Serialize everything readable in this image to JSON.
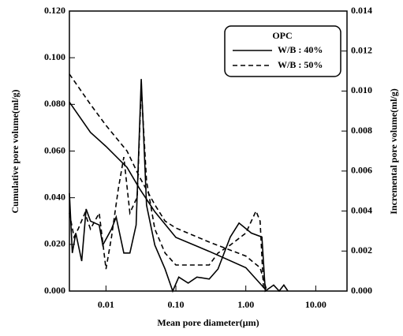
{
  "chart_data": {
    "type": "line",
    "xlabel": "Mean pore diameter(μm)",
    "ylabel": "Cumulative pore volume(ml/g)",
    "y2label": "Incremental pore volume(ml/g)",
    "legend_title": "OPC",
    "legend": "upper right",
    "xscale": "log",
    "xlim": [
      0.003,
      28
    ],
    "xticks": [
      0.01,
      {
        "value": 0.1,
        "label": "0.10"
      },
      {
        "value": 1,
        "label": "1.00"
      },
      {
        "value": 10,
        "label": "10.00"
      }
    ],
    "ylim": [
      0,
      0.12
    ],
    "yticks": [
      {
        "value": 0,
        "label": "0.000"
      },
      {
        "value": 0.02,
        "label": "0.020"
      },
      {
        "value": 0.04,
        "label": "0.040"
      },
      {
        "value": 0.06,
        "label": "0.060"
      },
      {
        "value": 0.08,
        "label": "0.080"
      },
      {
        "value": 0.1,
        "label": "0.100"
      },
      {
        "value": 0.12,
        "label": "0.120"
      }
    ],
    "y2lim": [
      0,
      0.014
    ],
    "y2ticks": [
      {
        "value": 0,
        "label": "0.000"
      },
      {
        "value": 0.002,
        "label": "0.002"
      },
      {
        "value": 0.004,
        "label": "0.004"
      },
      {
        "value": 0.006,
        "label": "0.006"
      },
      {
        "value": 0.008,
        "label": "0.008"
      },
      {
        "value": 0.01,
        "label": "0.010"
      },
      {
        "value": 0.012,
        "label": "0.012"
      },
      {
        "value": 0.014,
        "label": "0.014"
      }
    ],
    "series": [
      {
        "name": "W/B : 40%",
        "color": "#000000",
        "dash": false,
        "x": [
          0.003,
          0.006,
          0.01,
          0.02,
          0.03,
          0.05,
          0.1,
          0.3,
          1,
          2
        ],
        "values": [
          0.081,
          0.068,
          0.062,
          0.053,
          0.044,
          0.034,
          0.023,
          0.017,
          0.01,
          0
        ],
        "x2": [
          0.003,
          0.0033,
          0.0037,
          0.0045,
          0.0052,
          0.006,
          0.008,
          0.009,
          0.012,
          0.014,
          0.018,
          0.022,
          0.027,
          0.032,
          0.038,
          0.05,
          0.07,
          0.09,
          0.11,
          0.15,
          0.2,
          0.3,
          0.4,
          0.6,
          0.8,
          1.2,
          1.7,
          1.9,
          2.5,
          3,
          3.5,
          4
        ],
        "values2": [
          0.0049,
          0.0019,
          0.0029,
          0.0015,
          0.0041,
          0.0035,
          0.0033,
          0.0023,
          0.0031,
          0.0037,
          0.0019,
          0.0019,
          0.0033,
          0.0106,
          0.0043,
          0.0023,
          0.0011,
          0,
          0.0007,
          0.0004,
          0.0007,
          0.0006,
          0.0011,
          0.0027,
          0.0034,
          0.0029,
          0.0027,
          0,
          0.0003,
          0,
          0.0003,
          0
        ]
      },
      {
        "name": "W/B : 50%",
        "color": "#000000",
        "dash": true,
        "x": [
          0.003,
          0.006,
          0.01,
          0.02,
          0.03,
          0.05,
          0.07,
          0.1,
          0.3,
          1,
          1.6,
          2
        ],
        "values": [
          0.093,
          0.08,
          0.071,
          0.06,
          0.049,
          0.037,
          0.03,
          0.027,
          0.021,
          0.015,
          0.01,
          0
        ],
        "x2": [
          0.003,
          0.0035,
          0.004,
          0.005,
          0.006,
          0.008,
          0.01,
          0.012,
          0.015,
          0.018,
          0.022,
          0.028,
          0.032,
          0.038,
          0.05,
          0.07,
          0.1,
          0.2,
          0.3,
          0.4,
          0.6,
          1,
          1.4,
          1.6,
          1.8
        ],
        "values2": [
          0.0039,
          0.0027,
          0.0031,
          0.0039,
          0.0031,
          0.0039,
          0.0011,
          0.0027,
          0.0051,
          0.0067,
          0.0039,
          0.0047,
          0.0102,
          0.0055,
          0.0031,
          0.0019,
          0.0013,
          0.0013,
          0.0013,
          0.0019,
          0.0023,
          0.0029,
          0.004,
          0.0035,
          0
        ]
      }
    ]
  }
}
